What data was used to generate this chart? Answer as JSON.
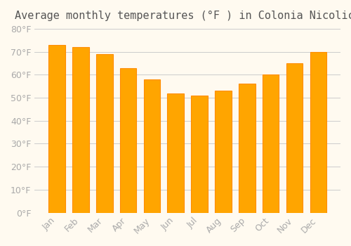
{
  "title": "Average monthly temperatures (°F ) in Colonia Nicolich",
  "months": [
    "Jan",
    "Feb",
    "Mar",
    "Apr",
    "May",
    "Jun",
    "Jul",
    "Aug",
    "Sep",
    "Oct",
    "Nov",
    "Dec"
  ],
  "values": [
    73,
    72,
    69,
    63,
    58,
    52,
    51,
    53,
    56,
    60,
    65,
    70
  ],
  "bar_color": "#FFA500",
  "bar_edge_color": "#FF8C00",
  "ylim": [
    0,
    80
  ],
  "yticks": [
    0,
    10,
    20,
    30,
    40,
    50,
    60,
    70,
    80
  ],
  "ylabel_suffix": "°F",
  "background_color": "#FFFAF0",
  "grid_color": "#cccccc",
  "title_fontsize": 11,
  "tick_fontsize": 9
}
